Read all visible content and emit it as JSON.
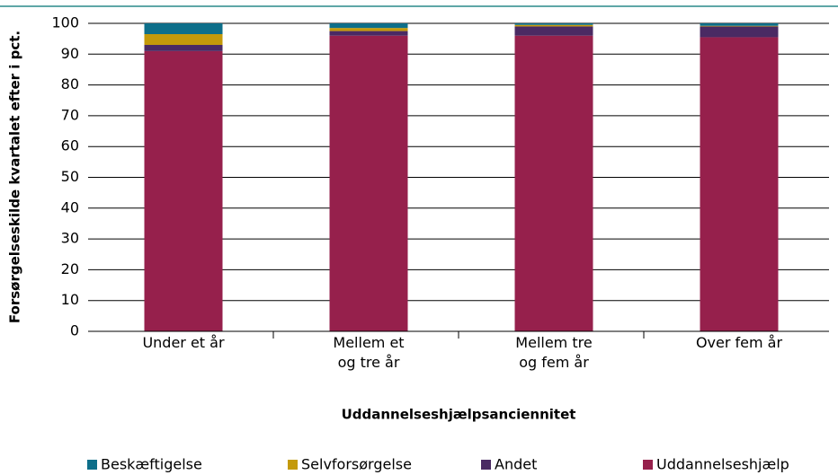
{
  "chart_data": {
    "type": "stacked_bar",
    "y_label": "Forsørgelseskilde kvartalet efter i pct.",
    "x_label": "Uddannelseshjælpsanciennitet",
    "categories": [
      "Under et år",
      "Mellem et\nog tre år",
      "Mellem tre\nog fem år",
      "Over fem år"
    ],
    "series": [
      {
        "name": "Beskæftigelse",
        "color": "#0e6f8a",
        "values": [
          3.5,
          1.5,
          0.5,
          0.8
        ]
      },
      {
        "name": "Selvforsørgelse",
        "color": "#c49a0a",
        "values": [
          3.5,
          1,
          0.5,
          0.2
        ]
      },
      {
        "name": "Andet",
        "color": "#4a2a63",
        "values": [
          2,
          1.5,
          3,
          3.5
        ]
      },
      {
        "name": "Uddannelseshjælp",
        "color": "#96204c",
        "values": [
          91,
          96,
          96,
          95.5
        ]
      }
    ],
    "ylim": [
      0,
      100
    ],
    "yticks": [
      0,
      10,
      20,
      30,
      40,
      50,
      60,
      70,
      80,
      90,
      100
    ],
    "grid": true
  }
}
